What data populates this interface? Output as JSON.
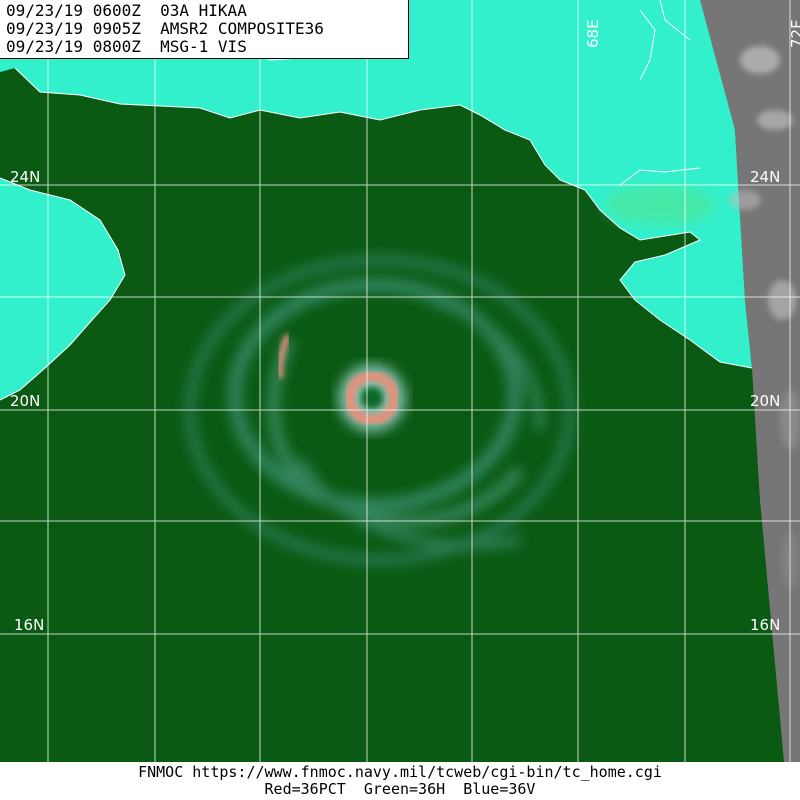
{
  "header": {
    "line1": "09/23/19 0600Z  03A HIKAA",
    "line2": "09/23/19 0905Z  AMSR2 COMPOSITE36",
    "line3": "09/23/19 0800Z  MSG-1 VIS"
  },
  "lat_labels": {
    "n24_left": "24N",
    "n24_right": "24N",
    "n20_left": "20N",
    "n20_right": "20N",
    "n16_left": "16N",
    "n16_right": "16N"
  },
  "lon_labels": {
    "e68": "68E",
    "e72": "72E"
  },
  "footer": {
    "line1": "FNMOC https://www.fnmoc.navy.mil/tcweb/cgi-bin/tc_home.cgi",
    "line2": "Red=36PCT  Green=36H  Blue=36V"
  },
  "colors": {
    "ocean": "#0b5a14",
    "land": "#33f0cc",
    "grid": "#ffffff",
    "eyewall": "#e8907c"
  }
}
